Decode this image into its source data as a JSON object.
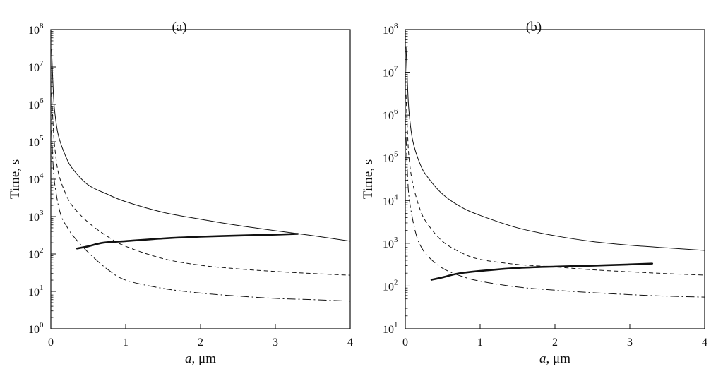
{
  "chart_data": [
    {
      "type": "line",
      "panel_label": "(a)",
      "title": "",
      "xlabel_italic": "a",
      "xlabel_unit": ", μm",
      "ylabel": "Time, s",
      "xlim": [
        0,
        4
      ],
      "x_ticks": [
        "0",
        "1",
        "2",
        "3",
        "4"
      ],
      "y_scale": "log",
      "ylim_exp": [
        0,
        8
      ],
      "y_tick_exponents": [
        "0",
        "1",
        "2",
        "3",
        "4",
        "5",
        "6",
        "7",
        "8"
      ],
      "y_tick_base": "10",
      "series": [
        {
          "name": "solid-thin",
          "style": "solid",
          "width": 1,
          "x": [
            0.01,
            0.03,
            0.05,
            0.1,
            0.2,
            0.3,
            0.5,
            0.75,
            1.0,
            1.5,
            2.0,
            2.5,
            3.0,
            3.5,
            4.0
          ],
          "y": [
            30000000,
            3000000,
            700000,
            150000,
            40000,
            18000,
            7000,
            4000,
            2500,
            1300,
            850,
            580,
            420,
            310,
            220
          ]
        },
        {
          "name": "dashed",
          "style": "dashed",
          "width": 1,
          "x": [
            0.01,
            0.03,
            0.05,
            0.1,
            0.2,
            0.3,
            0.5,
            0.75,
            1.0,
            1.5,
            2.0,
            2.5,
            3.0,
            3.5,
            4.0
          ],
          "y": [
            2000000,
            300000,
            80000,
            15000,
            4000,
            1800,
            700,
            300,
            160,
            75,
            50,
            40,
            34,
            30,
            27
          ]
        },
        {
          "name": "dash-dot",
          "style": "dashdot",
          "width": 1,
          "x": [
            0.01,
            0.03,
            0.05,
            0.1,
            0.15,
            0.2,
            0.3,
            0.5,
            0.75,
            1.0,
            1.5,
            2.0,
            2.5,
            3.0,
            3.5,
            4.0
          ],
          "y": [
            200000,
            25000,
            8000,
            2000,
            900,
            600,
            300,
            110,
            40,
            20,
            12,
            9,
            7.5,
            6.5,
            6,
            5.5
          ]
        },
        {
          "name": "thick",
          "style": "solid",
          "width": 2.6,
          "x": [
            0.35,
            0.5,
            0.7,
            1.0,
            1.5,
            2.0,
            2.5,
            3.0,
            3.3
          ],
          "y": [
            140,
            160,
            200,
            220,
            260,
            290,
            310,
            330,
            345
          ]
        }
      ]
    },
    {
      "type": "line",
      "panel_label": "(b)",
      "title": "",
      "xlabel_italic": "a",
      "xlabel_unit": ", μm",
      "ylabel": "Time, s",
      "xlim": [
        0,
        4
      ],
      "x_ticks": [
        "0",
        "1",
        "2",
        "3",
        "4"
      ],
      "y_scale": "log",
      "ylim_exp": [
        1,
        8
      ],
      "y_tick_exponents": [
        "1",
        "2",
        "3",
        "4",
        "5",
        "6",
        "7",
        "8"
      ],
      "y_tick_base": "10",
      "series": [
        {
          "name": "solid-thin",
          "style": "solid",
          "width": 1,
          "x": [
            0.01,
            0.03,
            0.05,
            0.1,
            0.2,
            0.3,
            0.5,
            0.75,
            1.0,
            1.5,
            2.0,
            2.5,
            3.0,
            3.5,
            4.0
          ],
          "y": [
            40000000,
            5000000,
            1200000,
            250000,
            70000,
            35000,
            14000,
            7000,
            4500,
            2300,
            1500,
            1100,
            900,
            780,
            680
          ]
        },
        {
          "name": "dashed",
          "style": "dashed",
          "width": 1,
          "x": [
            0.01,
            0.03,
            0.05,
            0.1,
            0.2,
            0.3,
            0.5,
            0.75,
            1.0,
            1.5,
            2.0,
            2.5,
            3.0,
            3.5,
            4.0
          ],
          "y": [
            3000000,
            400000,
            100000,
            25000,
            6000,
            2800,
            1100,
            600,
            420,
            320,
            280,
            240,
            215,
            195,
            180
          ]
        },
        {
          "name": "dash-dot",
          "style": "dashdot",
          "width": 1,
          "x": [
            0.01,
            0.03,
            0.05,
            0.1,
            0.15,
            0.2,
            0.3,
            0.5,
            0.75,
            1.0,
            1.5,
            2.0,
            2.5,
            3.0,
            3.5,
            4.0
          ],
          "y": [
            300000,
            40000,
            12000,
            3500,
            1500,
            900,
            500,
            260,
            170,
            130,
            95,
            80,
            70,
            63,
            58,
            55
          ]
        },
        {
          "name": "thick",
          "style": "solid",
          "width": 2.6,
          "x": [
            0.35,
            0.5,
            0.7,
            1.0,
            1.5,
            2.0,
            2.5,
            3.0,
            3.3
          ],
          "y": [
            140,
            160,
            195,
            225,
            265,
            285,
            300,
            320,
            335
          ]
        }
      ]
    }
  ]
}
